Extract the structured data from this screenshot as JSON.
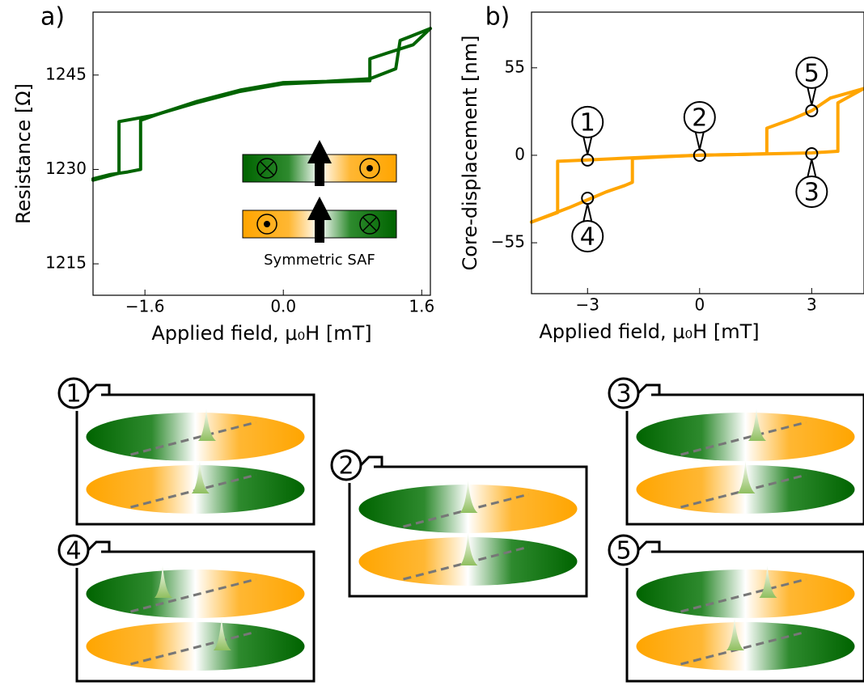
{
  "chart_data": [
    {
      "type": "line",
      "panel_label": "a)",
      "xlabel": "Applied field, μ₀H [mT]",
      "ylabel": "Resistance [Ω]",
      "xlim": [
        -2.2,
        1.7
      ],
      "xticks": [
        {
          "value": -1.6,
          "label": "−1.6"
        },
        {
          "value": 0,
          "label": "0.0"
        },
        1.6
      ],
      "ylim": [
        1210,
        1255
      ],
      "yticks": [
        1215,
        1230,
        1245
      ],
      "inset_label": "Symmetric SAF",
      "series": [
        {
          "color": "#006400",
          "x": [
            -2.2,
            -2.0,
            -1.8,
            -1.65,
            -1.65,
            -1.4,
            -1.0,
            -0.5,
            0,
            0.5,
            1.0,
            1.3,
            1.35,
            1.5,
            1.7
          ],
          "values": [
            1228.5,
            1229.2,
            1229.6,
            1230,
            1237.8,
            1239,
            1240.8,
            1242.6,
            1243.8,
            1244.0,
            1244.4,
            1246,
            1250.5,
            1251.3,
            1252.4
          ]
        },
        {
          "color": "#006400",
          "x": [
            1.7,
            1.5,
            1.2,
            1.0,
            1.0,
            0.5,
            0,
            -0.5,
            -1.0,
            -1.5,
            -1.9,
            -1.9,
            -2.2
          ],
          "values": [
            1252.4,
            1249.8,
            1248.5,
            1247.6,
            1244.1,
            1243.9,
            1243.6,
            1242.4,
            1240.6,
            1238.6,
            1237.6,
            1229.4,
            1228.3
          ]
        }
      ]
    },
    {
      "type": "line",
      "panel_label": "b)",
      "xlabel": "Applied field, μ₀H [mT]",
      "ylabel": "Core-displacement [nm]",
      "xlim": [
        -4.5,
        4.4
      ],
      "xticks": [
        {
          "value": -3,
          "label": "−3"
        },
        0,
        3
      ],
      "ylim": [
        -87,
        90
      ],
      "yticks": [
        {
          "value": -55,
          "label": "−55"
        },
        0,
        55
      ],
      "series": [
        {
          "color": "#FFA500",
          "x": [
            -4.5,
            -3.5,
            -3,
            -2.5,
            -2.0,
            -1.8,
            -1.8,
            -1,
            0,
            1,
            2,
            3,
            3.7,
            3.7,
            4.4
          ],
          "values": [
            -42,
            -33,
            -28,
            -23,
            -19,
            -17,
            -2,
            -1,
            0,
            0.5,
            1,
            1.5,
            2.5,
            33,
            42
          ]
        },
        {
          "color": "#FFA500",
          "x": [
            4.4,
            3.5,
            3,
            2.5,
            1.8,
            1.8,
            1,
            0,
            -1,
            -2,
            -3,
            -3.8,
            -3.8,
            -4.5
          ],
          "values": [
            42,
            36,
            28,
            23,
            17,
            1,
            0.5,
            0,
            -0.8,
            -1.8,
            -3,
            -3.8,
            -36,
            -42
          ]
        }
      ],
      "annotations": [
        {
          "label": "1",
          "x": -3,
          "y": -3
        },
        {
          "label": "2",
          "x": 0,
          "y": 0
        },
        {
          "label": "3",
          "x": 3,
          "y": 1
        },
        {
          "label": "4",
          "x": -3,
          "y": -27
        },
        {
          "label": "5",
          "x": 3,
          "y": 28
        }
      ]
    }
  ],
  "panels": [
    {
      "label": "1"
    },
    {
      "label": "2"
    },
    {
      "label": "3"
    },
    {
      "label": "4"
    },
    {
      "label": "5"
    }
  ]
}
